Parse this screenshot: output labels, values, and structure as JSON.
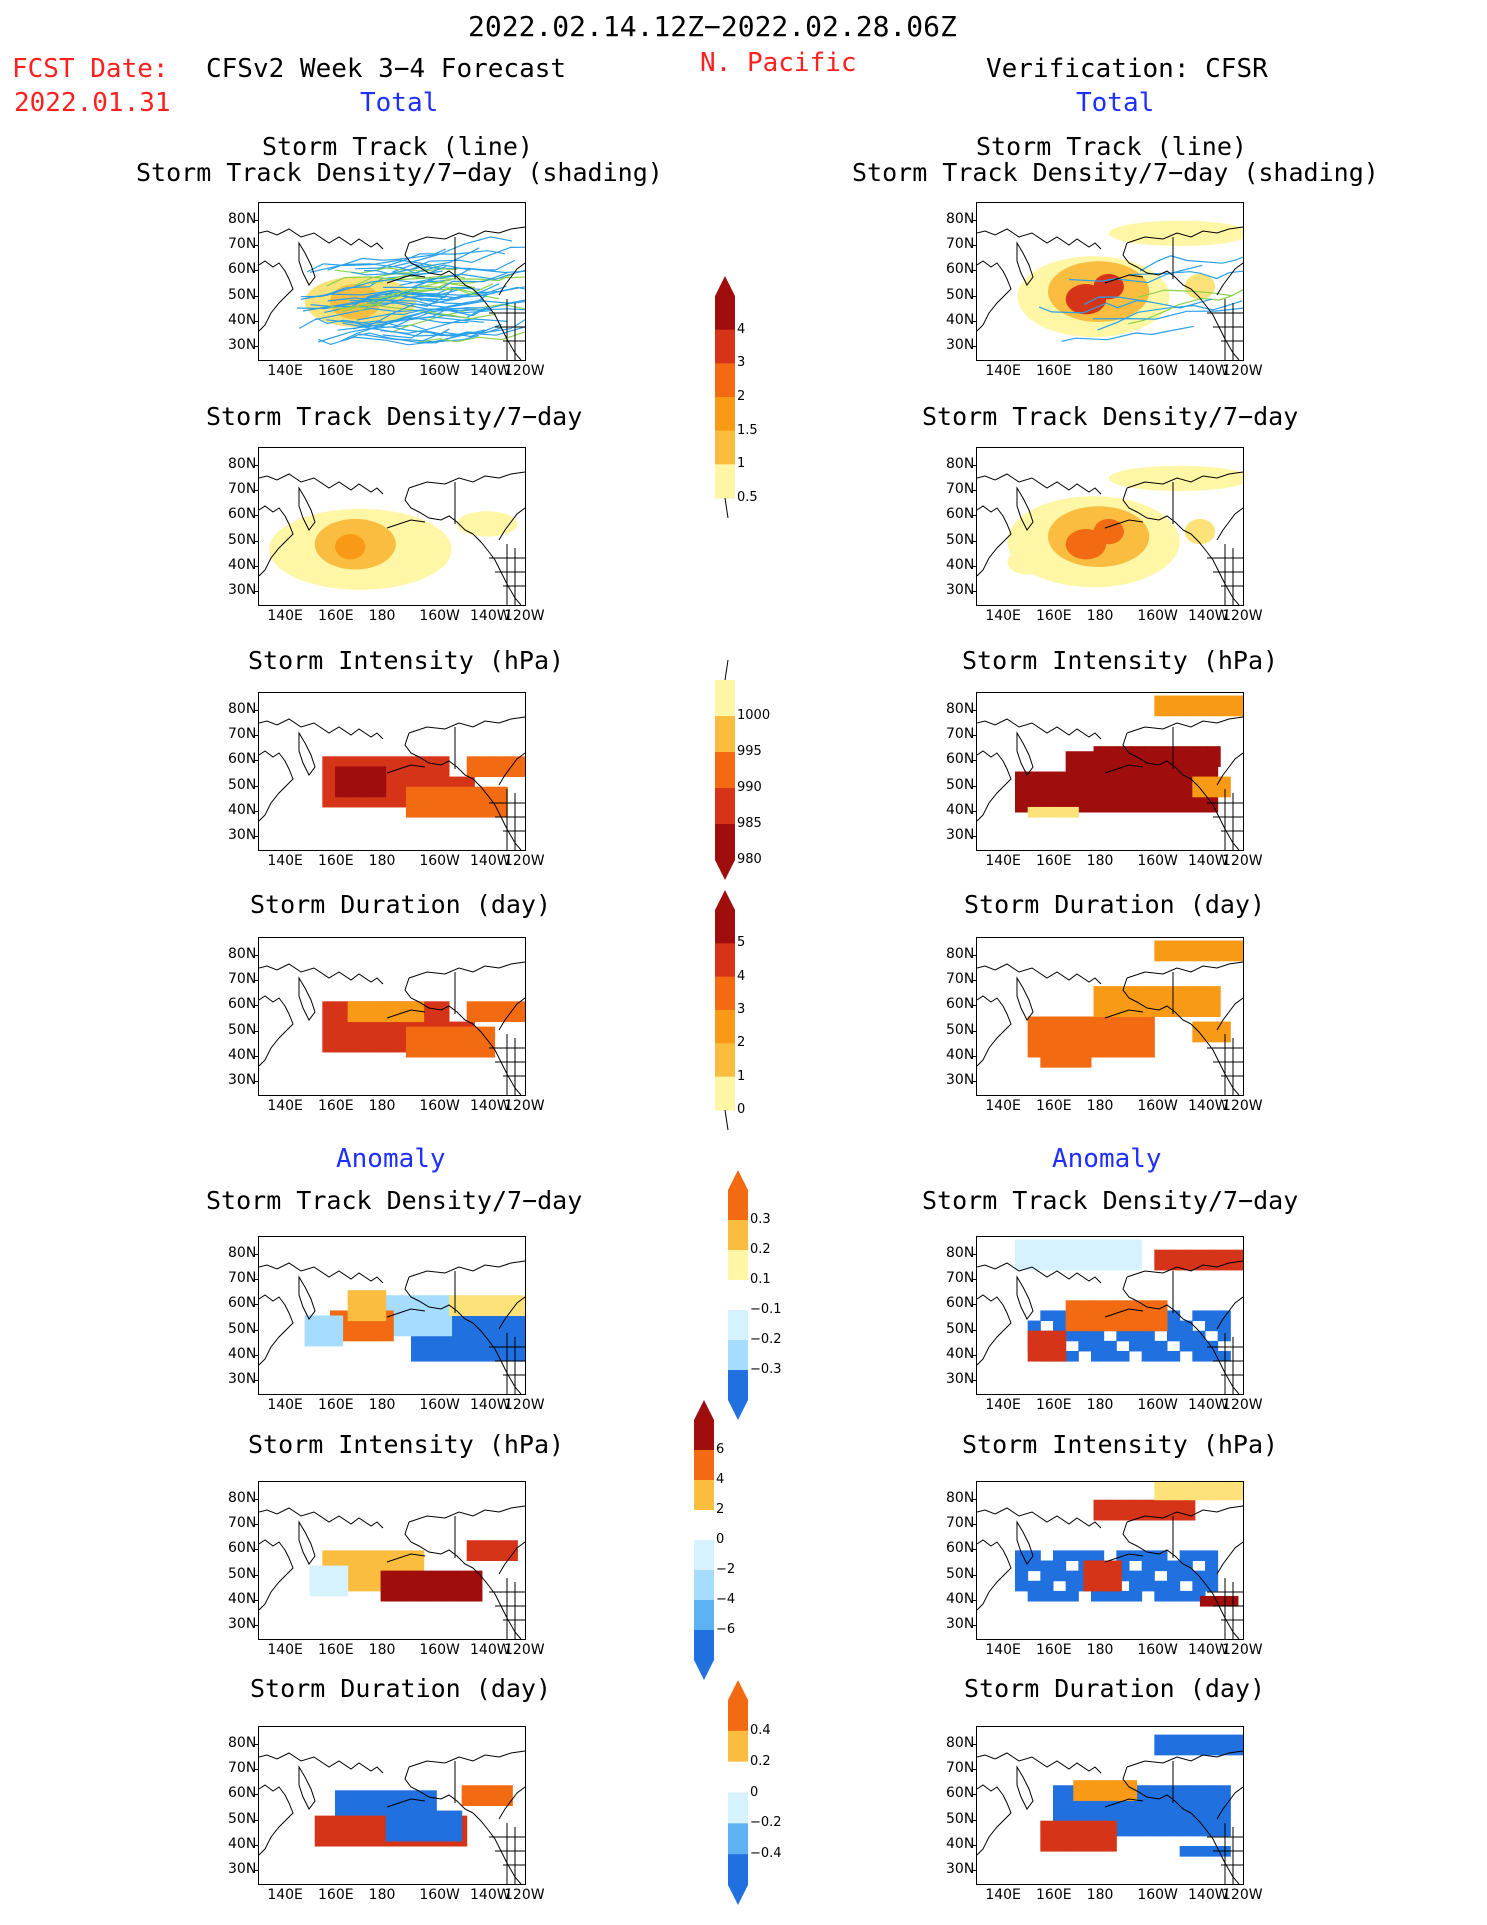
{
  "header": {
    "period": "2022.02.14.12Z−2022.02.28.06Z",
    "fcst_label": "FCST Date:",
    "fcst_date": "2022.01.31",
    "model_title": "CFSv2 Week 3−4 Forecast",
    "region": "N. Pacific",
    "verification": "Verification: CFSR",
    "total_left": "Total",
    "total_right": "Total",
    "anomaly_left": "Anomaly",
    "anomaly_right": "Anomaly"
  },
  "panel_titles": {
    "st_line": "Storm Track (line)",
    "st_shading": "Storm Track Density/7−day (shading)",
    "density": "Storm Track Density/7−day",
    "intensity": "Storm Intensity (hPa)",
    "duration": "Storm Duration (day)"
  },
  "axes": {
    "lat_ticks": [
      "80N",
      "70N",
      "60N",
      "50N",
      "40N",
      "30N"
    ],
    "lon_ticks": [
      "140E",
      "160E",
      "180",
      "160W",
      "140W",
      "120W"
    ]
  },
  "colors": {
    "pos": [
      "#fff6a6",
      "#fde27a",
      "#fbbd3f",
      "#f99a16",
      "#f26b12",
      "#d63418",
      "#a00d0d"
    ],
    "neg": [
      "#d6f2ff",
      "#a5dcff",
      "#5fb2f2",
      "#2170e0",
      "#1a48c9"
    ]
  },
  "chart_data": [
    {
      "type": "heatmap",
      "name": "total_density_colorbar",
      "levels": [
        0.5,
        1,
        1.5,
        2,
        3,
        4
      ]
    },
    {
      "type": "heatmap",
      "name": "total_intensity_colorbar",
      "levels": [
        1000,
        995,
        990,
        985,
        980
      ]
    },
    {
      "type": "heatmap",
      "name": "total_duration_colorbar",
      "levels": [
        5,
        4,
        3,
        2,
        1,
        0
      ]
    },
    {
      "type": "heatmap",
      "name": "anom_density_colorbar",
      "levels": [
        0.3,
        0.2,
        0.1,
        -0.1,
        -0.2,
        -0.3
      ]
    },
    {
      "type": "heatmap",
      "name": "anom_intensity_colorbar",
      "levels": [
        6,
        4,
        2,
        0,
        -2,
        -4,
        -6
      ]
    },
    {
      "type": "heatmap",
      "name": "anom_duration_colorbar",
      "levels": [
        0.4,
        0.2,
        0,
        -0.2,
        -0.4
      ]
    }
  ],
  "colorbar_labels": {
    "total_density": [
      "4",
      "3",
      "2",
      "1.5",
      "1",
      "0.5"
    ],
    "total_intensity": [
      "1000",
      "995",
      "990",
      "985",
      "980"
    ],
    "total_duration": [
      "5",
      "4",
      "3",
      "2",
      "1",
      "0"
    ],
    "anom_density": [
      "0.3",
      "0.2",
      "0.1",
      "−0.1",
      "−0.2",
      "−0.3"
    ],
    "anom_intensity": [
      "6",
      "4",
      "2",
      "0",
      "−2",
      "−4",
      "−6"
    ],
    "anom_duration": [
      "0.4",
      "0.2",
      "0",
      "−0.2",
      "−0.4"
    ]
  }
}
